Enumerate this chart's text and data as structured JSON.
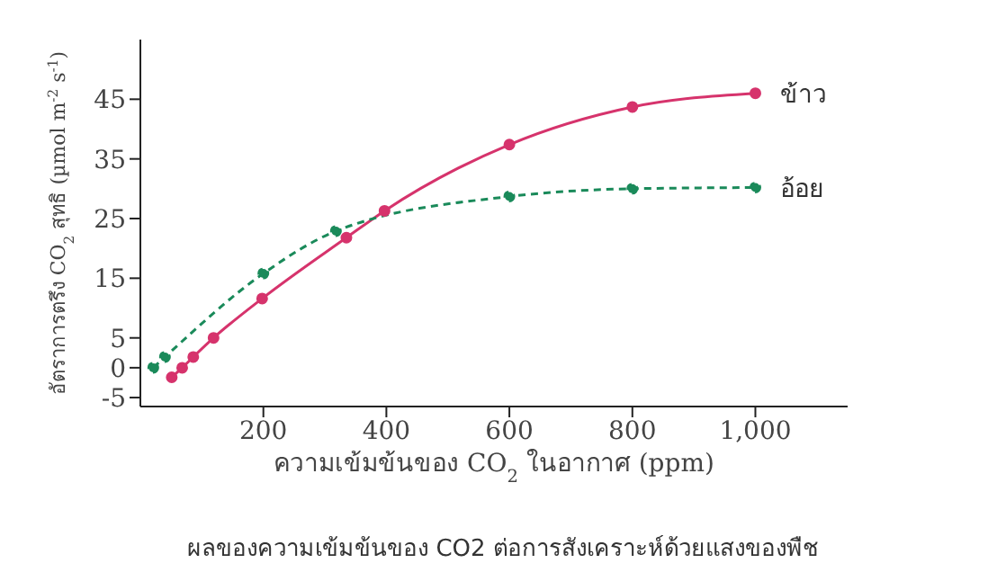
{
  "chart_data": {
    "type": "line",
    "title": "ผลของความเข้มข้นของ CO2 ต่อการสังเคราะห์ด้วยแสงของพืช",
    "xlabel": "ความเข้มข้นของ CO$_{2}$ ในอากาศ (ppm)",
    "ylabel": "อัตราการตรึง CO$_{2}$ สุทธิ (µmol m$^{-2}$ s$^{-1}$)",
    "xlim": [
      0,
      1150
    ],
    "xticks": [
      200,
      400,
      600,
      {
        "value": 800,
        "label": "800"
      },
      {
        "value": 1000,
        "label": "1,000"
      }
    ],
    "ylim": [
      -6.5,
      55
    ],
    "yticks": [
      -5,
      0,
      5,
      15,
      25,
      35,
      45
    ],
    "grid": false,
    "marker": "circle",
    "series": [
      {
        "name": "ข้าว",
        "color": "#d6336c",
        "line_style": "solid",
        "x": [
          51,
          68,
          86,
          119,
          198,
          335,
          397,
          600,
          800,
          1000
        ],
        "values": [
          -1.6,
          0,
          1.8,
          5,
          11.6,
          21.8,
          26.3,
          37.4,
          43.7,
          46
        ]
      },
      {
        "name": "อ้อย",
        "color": "#1a8a5a",
        "line_style": "dashed",
        "x": [
          21,
          40,
          200,
          318,
          600,
          800,
          1000
        ],
        "values": [
          0,
          1.8,
          15.8,
          22.9,
          28.7,
          30,
          30.2
        ]
      }
    ]
  }
}
